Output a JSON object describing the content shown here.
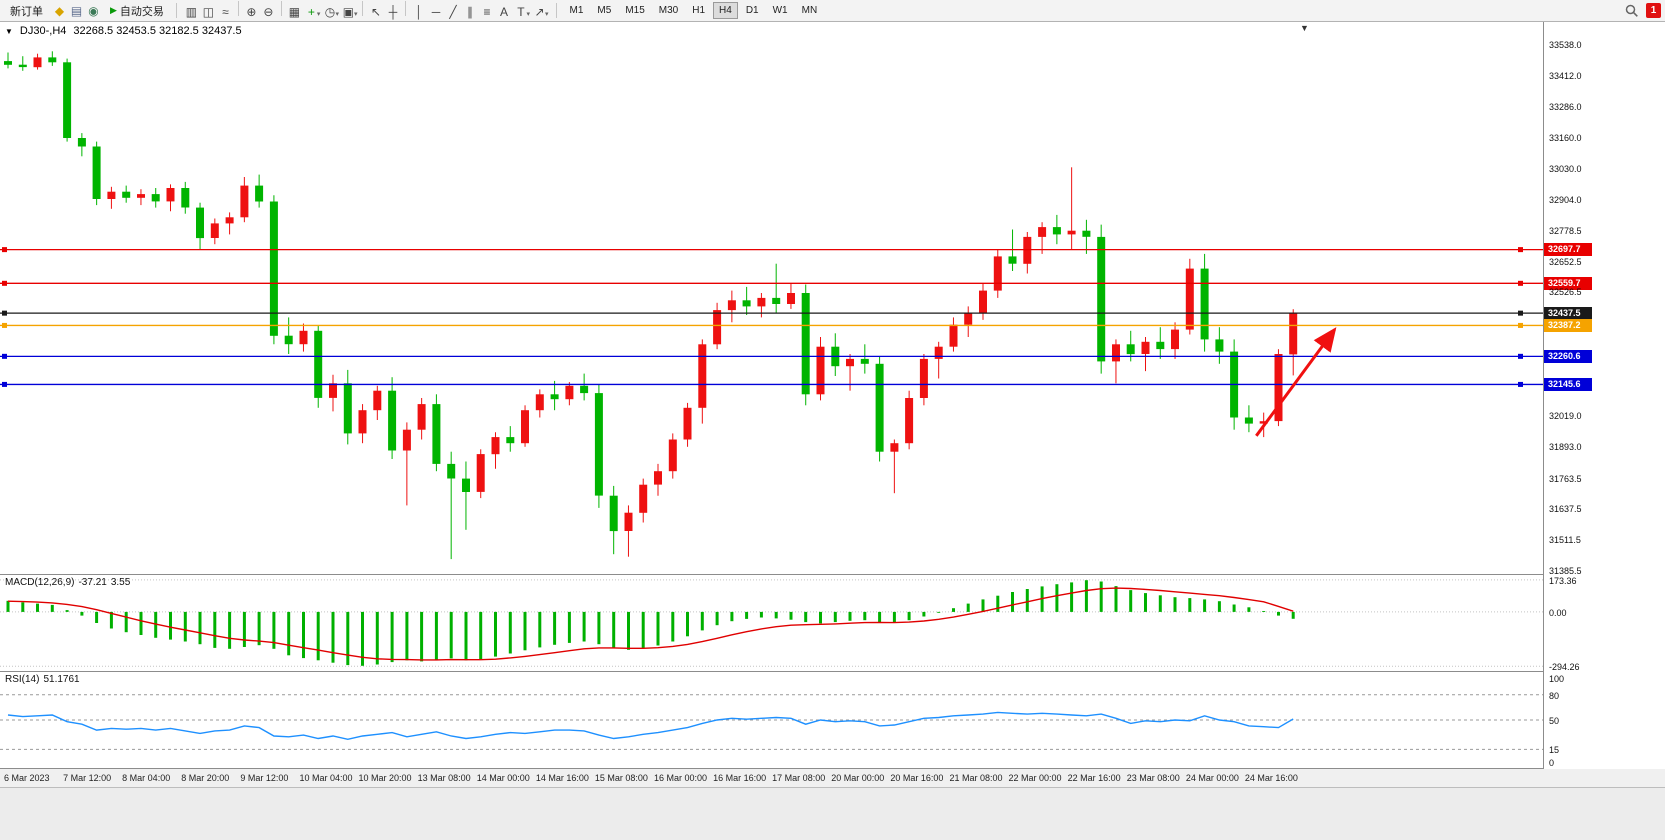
{
  "toolbar": {
    "new_order_label": "新订单",
    "auto_trading_label": "自动交易",
    "play_glyph": "▶",
    "caret_glyph": "▾",
    "left_icons": [
      {
        "name": "new-chart-icon",
        "glyph": "◆",
        "color": "#d8a400"
      },
      {
        "name": "profiles-icon",
        "glyph": "▤",
        "color": "#5b6b8c"
      },
      {
        "name": "refresh-icon",
        "glyph": "◉",
        "color": "#3b7a57"
      }
    ],
    "tool_groups": [
      [
        {
          "name": "bar-chart-icon",
          "glyph": "▥"
        },
        {
          "name": "candlestick-chart-icon",
          "glyph": "◫"
        },
        {
          "name": "line-chart-icon",
          "glyph": "≈"
        }
      ],
      [
        {
          "name": "zoom-in-icon",
          "glyph": "⊕"
        },
        {
          "name": "zoom-out-icon",
          "glyph": "⊖"
        }
      ],
      [
        {
          "name": "tile-windows-icon",
          "glyph": "▦"
        },
        {
          "name": "indicators-icon",
          "glyph": "+",
          "color": "#0a9a0a",
          "caret": true
        },
        {
          "name": "period-icon",
          "glyph": "◷",
          "caret": true
        },
        {
          "name": "template-icon",
          "glyph": "▣",
          "caret": true
        }
      ],
      [
        {
          "name": "cursor-icon",
          "glyph": "↖"
        },
        {
          "name": "crosshair-icon",
          "glyph": "┼"
        }
      ],
      [
        {
          "name": "vertical-line-icon",
          "glyph": "│"
        },
        {
          "name": "horizontal-line-icon",
          "glyph": "─"
        },
        {
          "name": "trendline-icon",
          "glyph": "╱"
        },
        {
          "name": "channel-icon",
          "glyph": "∥"
        },
        {
          "name": "fibonacci-icon",
          "glyph": "≡"
        },
        {
          "name": "text-icon",
          "glyph": "A"
        },
        {
          "name": "label-icon",
          "glyph": "T",
          "caret": true
        },
        {
          "name": "arrows-icon",
          "glyph": "↗",
          "caret": true
        }
      ]
    ],
    "timeframes": [
      "M1",
      "M5",
      "M15",
      "M30",
      "H1",
      "H4",
      "D1",
      "W1",
      "MN"
    ],
    "active_timeframe": "H4",
    "notification_count": "1"
  },
  "chart_header": {
    "collapse_glyph": "▼",
    "symbol": "DJ30-,H4",
    "ohlc": "32268.5 32453.5 32182.5 32437.5",
    "shift_marker_glyph": "▼"
  },
  "price_axis_labels": [
    "33538.0",
    "33412.0",
    "33286.0",
    "33160.0",
    "33030.0",
    "32904.0",
    "32778.5",
    "32652.5",
    "32526.5",
    "32019.0",
    "31893.0",
    "31763.5",
    "31637.5",
    "31511.5",
    "31385.5"
  ],
  "levels": [
    {
      "name": "resistance-1",
      "price": 32697.7,
      "label": "32697.7",
      "color": "#e80000"
    },
    {
      "name": "resistance-2",
      "price": 32559.7,
      "label": "32559.7",
      "color": "#e80000"
    },
    {
      "name": "bid-price",
      "price": 32437.5,
      "label": "32437.5",
      "color": "#1a1a1a"
    },
    {
      "name": "pivot-line",
      "price": 32387.2,
      "label": "32387.2",
      "color": "#f5a300"
    },
    {
      "name": "support-1",
      "price": 32260.6,
      "label": "32260.6",
      "color": "#0000d8"
    },
    {
      "name": "support-2",
      "price": 32145.6,
      "label": "32145.6",
      "color": "#0000d8"
    }
  ],
  "macd_panel": {
    "name": "MACD(12,26,9)",
    "value_main": "-37.21",
    "value_signal": "3.55",
    "axis": [
      {
        "label": "173.36",
        "value": 173.36
      },
      {
        "label": "0.00",
        "value": 0
      },
      {
        "label": "-294.26",
        "value": -294.26
      }
    ]
  },
  "rsi_panel": {
    "name": "RSI(14)",
    "value": "51.1761",
    "axis": [
      {
        "label": "100",
        "value": 100
      },
      {
        "label": "80",
        "value": 80
      },
      {
        "label": "50",
        "value": 50
      },
      {
        "label": "15",
        "value": 15
      },
      {
        "label": "0",
        "value": 0
      }
    ],
    "levels": [
      80,
      50,
      15
    ]
  },
  "time_axis": [
    "6 Mar 2023",
    "7 Mar 12:00",
    "8 Mar 04:00",
    "8 Mar 20:00",
    "9 Mar 12:00",
    "10 Mar 04:00",
    "10 Mar 20:00",
    "13 Mar 08:00",
    "14 Mar 00:00",
    "14 Mar 16:00",
    "15 Mar 08:00",
    "16 Mar 00:00",
    "16 Mar 16:00",
    "17 Mar 08:00",
    "20 Mar 00:00",
    "20 Mar 16:00",
    "21 Mar 08:00",
    "22 Mar 00:00",
    "22 Mar 16:00",
    "23 Mar 08:00",
    "24 Mar 00:00",
    "24 Mar 16:00"
  ],
  "chart_data": {
    "type": "candlestick",
    "symbol": "DJ30-",
    "timeframe": "H4",
    "title": "DJ30-,H4 32268.5 32453.5 32182.5 32437.5",
    "price_max": 33630,
    "price_min": 31365,
    "bull_color": "#ee1111",
    "bear_color": "#00b400",
    "x_label_every": 4,
    "candles": [
      [
        33470,
        33505,
        33440,
        33455
      ],
      [
        33455,
        33490,
        33430,
        33445
      ],
      [
        33445,
        33500,
        33435,
        33485
      ],
      [
        33485,
        33510,
        33450,
        33465
      ],
      [
        33465,
        33480,
        33140,
        33155
      ],
      [
        33155,
        33175,
        33080,
        33120
      ],
      [
        33120,
        33140,
        32880,
        32905
      ],
      [
        32905,
        32955,
        32865,
        32935
      ],
      [
        32935,
        32960,
        32890,
        32910
      ],
      [
        32910,
        32945,
        32880,
        32925
      ],
      [
        32925,
        32950,
        32870,
        32895
      ],
      [
        32895,
        32965,
        32855,
        32950
      ],
      [
        32950,
        32975,
        32845,
        32870
      ],
      [
        32870,
        32890,
        32700,
        32745
      ],
      [
        32745,
        32825,
        32720,
        32805
      ],
      [
        32805,
        32850,
        32760,
        32830
      ],
      [
        32830,
        32995,
        32810,
        32960
      ],
      [
        32960,
        33005,
        32870,
        32895
      ],
      [
        32895,
        32920,
        32310,
        32345
      ],
      [
        32345,
        32420,
        32270,
        32310
      ],
      [
        32310,
        32395,
        32280,
        32365
      ],
      [
        32365,
        32385,
        32050,
        32090
      ],
      [
        32090,
        32185,
        32035,
        32150
      ],
      [
        32150,
        32205,
        31900,
        31945
      ],
      [
        31945,
        32065,
        31905,
        32040
      ],
      [
        32040,
        32140,
        32000,
        32120
      ],
      [
        32120,
        32175,
        31840,
        31875
      ],
      [
        31875,
        31990,
        31650,
        31960
      ],
      [
        31960,
        32090,
        31920,
        32065
      ],
      [
        32065,
        32105,
        31790,
        31820
      ],
      [
        31820,
        31870,
        31430,
        31760
      ],
      [
        31760,
        31830,
        31550,
        31705
      ],
      [
        31705,
        31880,
        31680,
        31860
      ],
      [
        31860,
        31950,
        31800,
        31930
      ],
      [
        31930,
        31975,
        31870,
        31905
      ],
      [
        31905,
        32060,
        31890,
        32040
      ],
      [
        32040,
        32125,
        32010,
        32105
      ],
      [
        32105,
        32160,
        32040,
        32085
      ],
      [
        32085,
        32155,
        32060,
        32140
      ],
      [
        32140,
        32190,
        32080,
        32110
      ],
      [
        32110,
        32145,
        31640,
        31690
      ],
      [
        31690,
        31730,
        31450,
        31545
      ],
      [
        31545,
        31650,
        31440,
        31620
      ],
      [
        31620,
        31760,
        31580,
        31735
      ],
      [
        31735,
        31820,
        31690,
        31790
      ],
      [
        31790,
        31945,
        31760,
        31920
      ],
      [
        31920,
        32070,
        31890,
        32050
      ],
      [
        32050,
        32330,
        31985,
        32310
      ],
      [
        32310,
        32480,
        32290,
        32450
      ],
      [
        32450,
        32530,
        32400,
        32490
      ],
      [
        32490,
        32545,
        32430,
        32465
      ],
      [
        32465,
        32520,
        32420,
        32500
      ],
      [
        32500,
        32640,
        32440,
        32475
      ],
      [
        32475,
        32560,
        32455,
        32520
      ],
      [
        32520,
        32555,
        32060,
        32105
      ],
      [
        32105,
        32340,
        32080,
        32300
      ],
      [
        32300,
        32355,
        32180,
        32220
      ],
      [
        32220,
        32270,
        32120,
        32250
      ],
      [
        32250,
        32310,
        32190,
        32230
      ],
      [
        32230,
        32260,
        31830,
        31870
      ],
      [
        31870,
        31920,
        31700,
        31905
      ],
      [
        31905,
        32120,
        31880,
        32090
      ],
      [
        32090,
        32270,
        32060,
        32250
      ],
      [
        32250,
        32320,
        32170,
        32300
      ],
      [
        32300,
        32420,
        32280,
        32390
      ],
      [
        32390,
        32465,
        32340,
        32440
      ],
      [
        32440,
        32560,
        32410,
        32530
      ],
      [
        32530,
        32700,
        32500,
        32670
      ],
      [
        32670,
        32780,
        32610,
        32640
      ],
      [
        32640,
        32770,
        32600,
        32750
      ],
      [
        32750,
        32810,
        32680,
        32790
      ],
      [
        32790,
        32840,
        32720,
        32760
      ],
      [
        32760,
        33035,
        32700,
        32775
      ],
      [
        32775,
        32820,
        32680,
        32750
      ],
      [
        32750,
        32800,
        32190,
        32240
      ],
      [
        32240,
        32330,
        32150,
        32310
      ],
      [
        32310,
        32365,
        32240,
        32270
      ],
      [
        32270,
        32340,
        32200,
        32320
      ],
      [
        32320,
        32380,
        32250,
        32290
      ],
      [
        32290,
        32400,
        32250,
        32370
      ],
      [
        32370,
        32660,
        32350,
        32620
      ],
      [
        32620,
        32680,
        32280,
        32330
      ],
      [
        32330,
        32380,
        32230,
        32280
      ],
      [
        32280,
        32330,
        31960,
        32010
      ],
      [
        32010,
        32060,
        31950,
        31985
      ],
      [
        31985,
        32030,
        31930,
        31995
      ],
      [
        31995,
        32290,
        31975,
        32270
      ],
      [
        32268.5,
        32453.5,
        32182.5,
        32437.5
      ]
    ],
    "macd": {
      "range": [
        -320,
        200
      ],
      "histogram_color": "#00b000",
      "signal_color": "#e00000",
      "histogram": [
        60,
        52,
        45,
        38,
        10,
        -20,
        -60,
        -90,
        -110,
        -125,
        -140,
        -150,
        -160,
        -175,
        -195,
        -200,
        -190,
        -180,
        -200,
        -235,
        -250,
        -262,
        -275,
        -288,
        -292,
        -285,
        -272,
        -262,
        -268,
        -258,
        -252,
        -262,
        -258,
        -242,
        -225,
        -208,
        -192,
        -178,
        -168,
        -160,
        -175,
        -195,
        -205,
        -198,
        -182,
        -160,
        -132,
        -100,
        -72,
        -50,
        -38,
        -30,
        -35,
        -42,
        -55,
        -62,
        -55,
        -48,
        -45,
        -55,
        -60,
        -45,
        -25,
        -5,
        20,
        45,
        68,
        88,
        108,
        124,
        138,
        150,
        160,
        172,
        165,
        140,
        118,
        102,
        90,
        80,
        75,
        68,
        58,
        40,
        25,
        5,
        -20,
        -37
      ],
      "signal": [
        58,
        56,
        53,
        49,
        41,
        29,
        12,
        -8,
        -28,
        -48,
        -66,
        -83,
        -98,
        -113,
        -129,
        -143,
        -152,
        -158,
        -166,
        -180,
        -194,
        -207,
        -221,
        -234,
        -246,
        -254,
        -257,
        -258,
        -260,
        -260,
        -258,
        -259,
        -259,
        -256,
        -249,
        -241,
        -231,
        -221,
        -210,
        -200,
        -195,
        -195,
        -197,
        -197,
        -194,
        -187,
        -176,
        -161,
        -143,
        -124,
        -107,
        -92,
        -80,
        -72,
        -69,
        -67,
        -65,
        -61,
        -58,
        -57,
        -58,
        -55,
        -49,
        -40,
        -28,
        -13,
        3,
        20,
        38,
        55,
        72,
        88,
        102,
        116,
        126,
        129,
        127,
        122,
        116,
        109,
        102,
        95,
        88,
        78,
        67,
        55,
        30,
        4
      ]
    },
    "rsi": {
      "range": [
        0,
        100
      ],
      "color": "#1e90ff",
      "values": [
        56,
        54,
        55,
        56,
        48,
        45,
        38,
        40,
        39,
        40,
        38,
        40,
        37,
        34,
        37,
        38,
        43,
        41,
        31,
        30,
        32,
        28,
        31,
        27,
        31,
        33,
        35,
        30,
        33,
        36,
        31,
        28,
        30,
        33,
        35,
        34,
        36,
        38,
        38,
        37,
        32,
        28,
        30,
        33,
        35,
        38,
        41,
        46,
        50,
        52,
        51,
        52,
        53,
        52,
        45,
        50,
        48,
        49,
        48,
        43,
        44,
        48,
        52,
        53,
        55,
        56,
        57,
        59,
        58,
        57,
        58,
        57,
        56,
        55,
        57,
        52,
        46,
        49,
        48,
        50,
        49,
        55,
        50,
        48,
        43,
        42,
        41,
        51.18
      ],
      "overbought": 80,
      "oversold": 15
    },
    "annotation_arrow": {
      "x1_index": 84.5,
      "y1_price": 31935,
      "x2_index": 89.8,
      "y2_price": 32370,
      "color": "#f01010"
    }
  }
}
